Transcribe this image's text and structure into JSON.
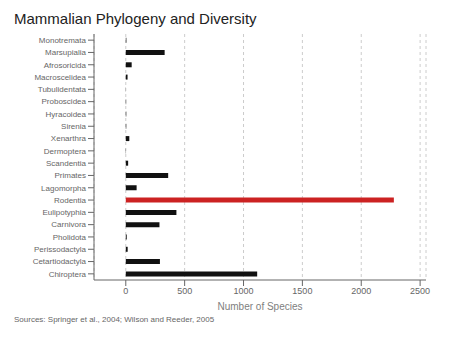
{
  "chart_data": {
    "type": "bar",
    "orientation": "horizontal",
    "title": "Mammalian Phylogeny and Diversity",
    "xlabel": "Number of Species",
    "annotations": [
      "Sources: Springer et al., 2004; Wilson and Reeder, 2005"
    ],
    "categories": [
      "Monotremata",
      "Marsupialia",
      "Afrosoricida",
      "Macroscelidea",
      "Tubulidentata",
      "Proboscidea",
      "Hyracoidea",
      "Sirenia",
      "Xenarthra",
      "Dermoptera",
      "Scandentia",
      "Primates",
      "Lagomorpha",
      "Rodentia",
      "Eulipotyphia",
      "Carnivora",
      "Pholidota",
      "Perissodactyla",
      "Cetartiodactyla",
      "Chiroptera"
    ],
    "values": [
      5,
      330,
      50,
      15,
      1,
      3,
      4,
      4,
      30,
      2,
      20,
      360,
      92,
      2277,
      430,
      286,
      8,
      16,
      290,
      1116
    ],
    "colors": [
      "#111111",
      "#111111",
      "#111111",
      "#111111",
      "#111111",
      "#111111",
      "#111111",
      "#111111",
      "#111111",
      "#111111",
      "#111111",
      "#111111",
      "#111111",
      "#cc2222",
      "#111111",
      "#111111",
      "#111111",
      "#111111",
      "#111111",
      "#111111"
    ],
    "xlim": [
      -270,
      2550
    ],
    "xticks": [
      0,
      500,
      1000,
      1500,
      2000,
      2500
    ],
    "grid": true
  }
}
